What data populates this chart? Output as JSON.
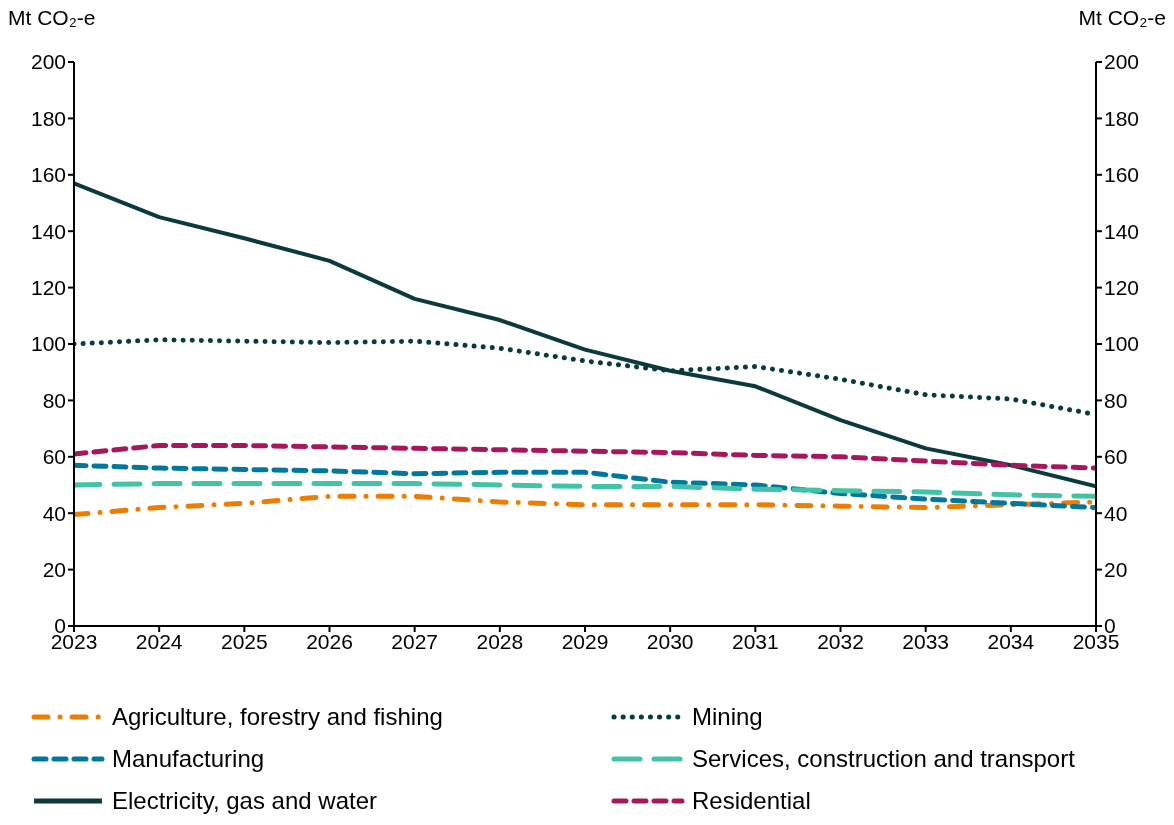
{
  "chart_data": {
    "type": "line",
    "ylabel": "Mt CO₂-e",
    "y2label": "Mt CO₂-e",
    "categories": [
      "2023",
      "2024",
      "2025",
      "2026",
      "2027",
      "2028",
      "2029",
      "2030",
      "2031",
      "2032",
      "2033",
      "2034",
      "2035"
    ],
    "ylim": [
      0,
      200
    ],
    "yticks": [
      0,
      20,
      40,
      60,
      80,
      100,
      120,
      140,
      160,
      180,
      200
    ],
    "y2lim": [
      0,
      200
    ],
    "y2ticks": [
      0,
      20,
      40,
      60,
      80,
      100,
      120,
      140,
      160,
      180,
      200
    ],
    "grid": false,
    "legend": "bottom",
    "marker": "none",
    "series": [
      {
        "name": "Agriculture, forestry and fishing",
        "color": "#ed7d01",
        "line_style": "dashdot",
        "values": [
          39.5,
          42,
          43.5,
          46,
          46,
          44,
          43,
          43,
          43,
          42.5,
          42,
          43,
          44
        ]
      },
      {
        "name": "Mining",
        "color": "#073b3f",
        "line_style": "dotted",
        "values": [
          100,
          101.5,
          101,
          100.5,
          101,
          98.5,
          94,
          90.5,
          92,
          87.5,
          82,
          80.5,
          75
        ]
      },
      {
        "name": "Manufacturing",
        "color": "#00789e",
        "line_style": "dashed",
        "values": [
          57,
          56,
          55.5,
          55,
          54,
          54.5,
          54.5,
          51,
          50,
          47,
          45,
          43.5,
          42
        ]
      },
      {
        "name": "Services, construction and transport",
        "color": "#41c3a8",
        "line_style": "longdash",
        "values": [
          50,
          50.5,
          50.5,
          50.5,
          50.5,
          50,
          49.5,
          49.5,
          48.5,
          48,
          47.5,
          46.5,
          46
        ]
      },
      {
        "name": "Electricity, gas and water",
        "color": "#0a3a3d",
        "line_style": "solid",
        "values": [
          157,
          145,
          137.5,
          129.5,
          116,
          108.5,
          98,
          90.5,
          85,
          73,
          63,
          57,
          49.5
        ]
      },
      {
        "name": "Residential",
        "color": "#a8175e",
        "line_style": "dashed",
        "values": [
          61,
          64,
          64,
          63.5,
          63,
          62.5,
          62,
          61.5,
          60.5,
          60,
          58.5,
          57,
          56
        ]
      }
    ]
  }
}
